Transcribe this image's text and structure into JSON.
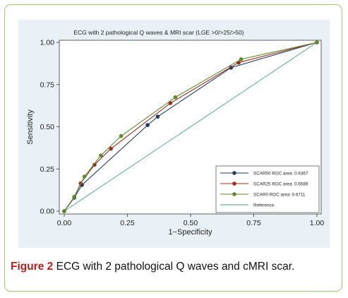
{
  "caption": {
    "label": "Figure 2",
    "text": "ECG with 2 pathological Q waves and cMRI scar."
  },
  "chart_data": {
    "type": "line",
    "title": "ECG with 2 pathological Q waves & MRI scar (LGE >0/>25/>50)",
    "xlabel": "1−Specificity",
    "ylabel": "Sensitivity",
    "xlim": [
      0,
      1
    ],
    "ylim": [
      0,
      1
    ],
    "xticks": [
      "0.00",
      "0.25",
      "0.50",
      "0.75",
      "1.00"
    ],
    "yticks": [
      "0.00",
      "0.25",
      "0.50",
      "0.75",
      "1.00"
    ],
    "grid": false,
    "legend_position": "bottom-right",
    "series": [
      {
        "name": "SCAR50 ROC area: 0.6367",
        "color": "#1f3b66",
        "x": [
          0,
          0.04,
          0.07,
          0.33,
          0.37,
          0.66,
          1.0
        ],
        "y": [
          0,
          0.08,
          0.155,
          0.51,
          0.56,
          0.85,
          1.0
        ]
      },
      {
        "name": "SCAR25 ROC area: 0.6589",
        "color": "#9a2f1e",
        "x": [
          0,
          0.04,
          0.065,
          0.12,
          0.185,
          0.42,
          0.69,
          1.0
        ],
        "y": [
          0,
          0.085,
          0.165,
          0.275,
          0.37,
          0.64,
          0.88,
          1.0
        ]
      },
      {
        "name": "SCAR0 ROC area: 0.6711",
        "color": "#5f8a2e",
        "x": [
          0,
          0.04,
          0.08,
          0.145,
          0.225,
          0.44,
          0.7,
          1.0
        ],
        "y": [
          0,
          0.085,
          0.205,
          0.33,
          0.445,
          0.675,
          0.9,
          1.0
        ]
      },
      {
        "name": "Reference",
        "color": "#4a9e8c",
        "x": [
          0,
          1
        ],
        "y": [
          0,
          1
        ]
      }
    ]
  }
}
